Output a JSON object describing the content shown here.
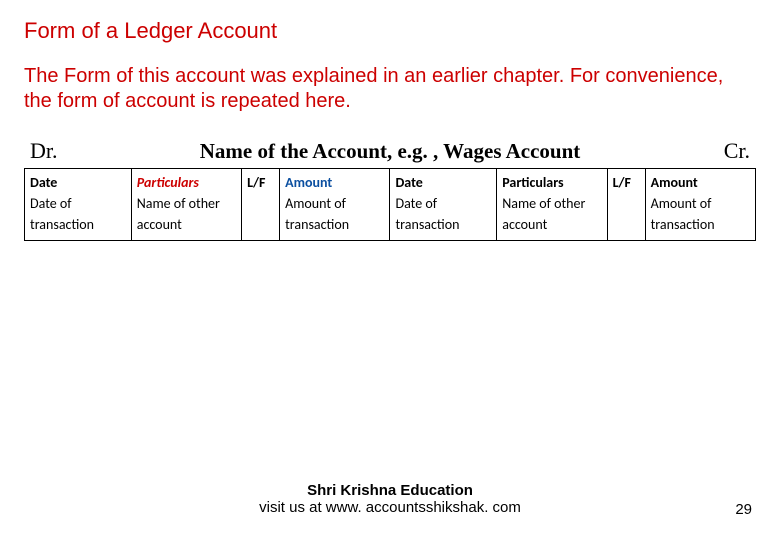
{
  "heading": "Form of a Ledger Account",
  "intro": "The Form of  this account was explained in an earlier chapter. For convenience, the form of account is repeated here.",
  "account": {
    "left_label": "Dr.",
    "title": "Name of the Account, e.g. , Wages Account",
    "right_label": "Cr."
  },
  "table": {
    "columns": [
      {
        "header": "Date",
        "header_style": "hdr",
        "body": "Date of transaction",
        "width_class": "col-date"
      },
      {
        "header": "Particulars",
        "header_style": "hdr-italic",
        "body": "Name of other account",
        "width_class": "col-part"
      },
      {
        "header": "L/F",
        "header_style": "hdr",
        "body": "",
        "width_class": "col-lf"
      },
      {
        "header": "Amount",
        "header_style": "hdr-blue",
        "body": "Amount of transaction",
        "width_class": "col-amt"
      },
      {
        "header": "Date",
        "header_style": "hdr",
        "body": "Date of transaction",
        "width_class": "col-date"
      },
      {
        "header": "Particulars",
        "header_style": "hdr",
        "body": "Name of other account",
        "width_class": "col-part"
      },
      {
        "header": "L/F",
        "header_style": "hdr",
        "body": "",
        "width_class": "col-lf"
      },
      {
        "header": "Amount",
        "header_style": "hdr",
        "body": "Amount of transaction",
        "width_class": "col-amt"
      }
    ]
  },
  "footer": {
    "line1": "Shri Krishna Education",
    "line2": "visit us at www. accountsshikshak. com"
  },
  "page_number": "29",
  "colors": {
    "red": "#cc0000",
    "blue": "#0b4fa0",
    "black": "#000000",
    "background": "#ffffff"
  }
}
